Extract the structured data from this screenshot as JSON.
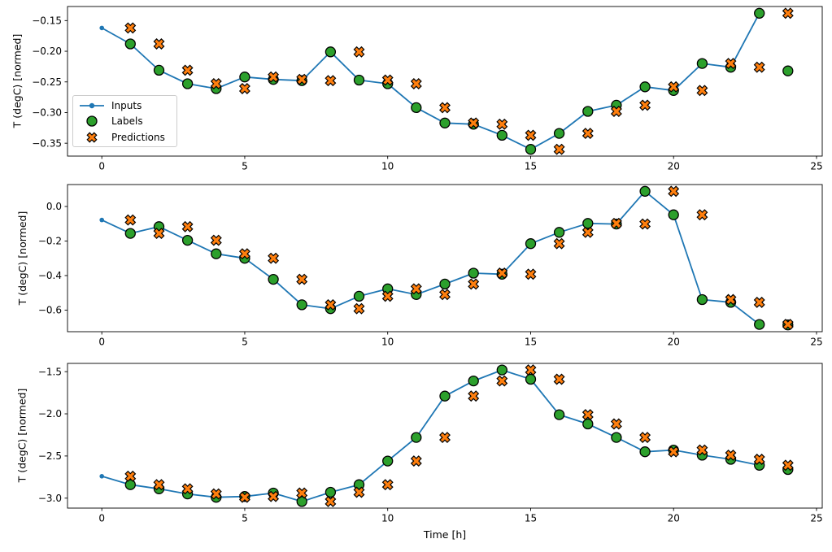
{
  "chart_data": [
    {
      "type": "line",
      "title": "",
      "xlabel": "",
      "ylabel": "T (degC) [normed]",
      "xlim": [
        -1.2,
        25.2
      ],
      "ylim": [
        -0.371,
        -0.127
      ],
      "xticks": [
        0,
        5,
        10,
        15,
        20,
        25
      ],
      "ytick_values": [
        -0.15,
        -0.2,
        -0.25,
        -0.3,
        -0.35
      ],
      "ytick_labels": [
        "−0.15",
        "−0.20",
        "−0.25",
        "−0.30",
        "−0.35"
      ],
      "grid": false,
      "legend_position": "center-left",
      "legend_labels": [
        "Inputs",
        "Labels",
        "Predictions"
      ],
      "series": [
        {
          "name": "Inputs",
          "type": "line",
          "marker": "dot",
          "color": "#1f77b4",
          "x": [
            0,
            1,
            2,
            3,
            4,
            5,
            6,
            7,
            8,
            9,
            10,
            11,
            12,
            13,
            14,
            15,
            16,
            17,
            18,
            19,
            20,
            21,
            22,
            23
          ],
          "y": [
            -0.162,
            -0.188,
            -0.231,
            -0.253,
            -0.261,
            -0.242,
            -0.246,
            -0.248,
            -0.201,
            -0.247,
            -0.253,
            -0.292,
            -0.317,
            -0.319,
            -0.337,
            -0.36,
            -0.334,
            -0.298,
            -0.288,
            -0.258,
            -0.264,
            -0.22,
            -0.226,
            -0.138
          ]
        },
        {
          "name": "Labels",
          "type": "scatter",
          "marker": "circle",
          "color": "#2ca02c",
          "x": [
            1,
            2,
            3,
            4,
            5,
            6,
            7,
            8,
            9,
            10,
            11,
            12,
            13,
            14,
            15,
            16,
            17,
            18,
            19,
            20,
            21,
            22,
            23,
            24
          ],
          "y": [
            -0.188,
            -0.231,
            -0.253,
            -0.261,
            -0.242,
            -0.246,
            -0.248,
            -0.201,
            -0.247,
            -0.253,
            -0.292,
            -0.317,
            -0.319,
            -0.337,
            -0.36,
            -0.334,
            -0.298,
            -0.288,
            -0.258,
            -0.264,
            -0.22,
            -0.226,
            -0.138,
            -0.232
          ]
        },
        {
          "name": "Predictions",
          "type": "scatter",
          "marker": "X",
          "color": "#ff7f0e",
          "x": [
            1,
            2,
            3,
            4,
            5,
            6,
            7,
            8,
            9,
            10,
            11,
            12,
            13,
            14,
            15,
            16,
            17,
            18,
            19,
            20,
            21,
            22,
            23,
            24
          ],
          "y": [
            -0.162,
            -0.188,
            -0.231,
            -0.253,
            -0.261,
            -0.242,
            -0.246,
            -0.248,
            -0.201,
            -0.247,
            -0.253,
            -0.292,
            -0.317,
            -0.319,
            -0.337,
            -0.36,
            -0.334,
            -0.298,
            -0.288,
            -0.258,
            -0.264,
            -0.22,
            -0.226,
            -0.138
          ]
        }
      ]
    },
    {
      "type": "line",
      "title": "",
      "xlabel": "",
      "ylabel": "T (degC) [normed]",
      "xlim": [
        -1.2,
        25.2
      ],
      "ylim": [
        -0.725,
        0.127
      ],
      "xticks": [
        0,
        5,
        10,
        15,
        20,
        25
      ],
      "ytick_values": [
        0.0,
        -0.2,
        -0.4,
        -0.6
      ],
      "ytick_labels": [
        "0.0",
        "−0.2",
        "−0.4",
        "−0.6"
      ],
      "grid": false,
      "series": [
        {
          "name": "Inputs",
          "type": "line",
          "marker": "dot",
          "color": "#1f77b4",
          "x": [
            0,
            1,
            2,
            3,
            4,
            5,
            6,
            7,
            8,
            9,
            10,
            11,
            12,
            13,
            14,
            15,
            16,
            17,
            18,
            19,
            20,
            21,
            22,
            23
          ],
          "y": [
            -0.078,
            -0.156,
            -0.117,
            -0.196,
            -0.274,
            -0.3,
            -0.422,
            -0.569,
            -0.592,
            -0.52,
            -0.477,
            -0.51,
            -0.449,
            -0.386,
            -0.392,
            -0.215,
            -0.15,
            -0.098,
            -0.102,
            0.088,
            -0.048,
            -0.539,
            -0.555,
            -0.683
          ]
        },
        {
          "name": "Labels",
          "type": "scatter",
          "marker": "circle",
          "color": "#2ca02c",
          "x": [
            1,
            2,
            3,
            4,
            5,
            6,
            7,
            8,
            9,
            10,
            11,
            12,
            13,
            14,
            15,
            16,
            17,
            18,
            19,
            20,
            21,
            22,
            23,
            24
          ],
          "y": [
            -0.156,
            -0.117,
            -0.196,
            -0.274,
            -0.3,
            -0.422,
            -0.569,
            -0.592,
            -0.52,
            -0.477,
            -0.51,
            -0.449,
            -0.386,
            -0.392,
            -0.215,
            -0.15,
            -0.098,
            -0.102,
            0.088,
            -0.048,
            -0.539,
            -0.555,
            -0.683,
            -0.686
          ]
        },
        {
          "name": "Predictions",
          "type": "scatter",
          "marker": "X",
          "color": "#ff7f0e",
          "x": [
            1,
            2,
            3,
            4,
            5,
            6,
            7,
            8,
            9,
            10,
            11,
            12,
            13,
            14,
            15,
            16,
            17,
            18,
            19,
            20,
            21,
            22,
            23,
            24
          ],
          "y": [
            -0.078,
            -0.156,
            -0.117,
            -0.196,
            -0.274,
            -0.3,
            -0.422,
            -0.569,
            -0.592,
            -0.52,
            -0.477,
            -0.51,
            -0.449,
            -0.386,
            -0.392,
            -0.215,
            -0.15,
            -0.098,
            -0.102,
            0.088,
            -0.048,
            -0.539,
            -0.555,
            -0.683
          ]
        }
      ]
    },
    {
      "type": "line",
      "title": "",
      "xlabel": "Time [h]",
      "ylabel": "T (degC) [normed]",
      "xlim": [
        -1.2,
        25.2
      ],
      "ylim": [
        -3.118,
        -1.402
      ],
      "xticks": [
        0,
        5,
        10,
        15,
        20,
        25
      ],
      "ytick_values": [
        -1.5,
        -2.0,
        -2.5,
        -3.0
      ],
      "ytick_labels": [
        "−1.5",
        "−2.0",
        "−2.5",
        "−3.0"
      ],
      "grid": false,
      "series": [
        {
          "name": "Inputs",
          "type": "line",
          "marker": "dot",
          "color": "#1f77b4",
          "x": [
            0,
            1,
            2,
            3,
            4,
            5,
            6,
            7,
            8,
            9,
            10,
            11,
            12,
            13,
            14,
            15,
            16,
            17,
            18,
            19,
            20,
            21,
            22,
            23
          ],
          "y": [
            -2.74,
            -2.84,
            -2.89,
            -2.95,
            -2.99,
            -2.98,
            -2.94,
            -3.04,
            -2.93,
            -2.84,
            -2.56,
            -2.28,
            -1.79,
            -1.61,
            -1.48,
            -1.59,
            -2.01,
            -2.12,
            -2.28,
            -2.45,
            -2.43,
            -2.49,
            -2.54,
            -2.61
          ]
        },
        {
          "name": "Labels",
          "type": "scatter",
          "marker": "circle",
          "color": "#2ca02c",
          "x": [
            1,
            2,
            3,
            4,
            5,
            6,
            7,
            8,
            9,
            10,
            11,
            12,
            13,
            14,
            15,
            16,
            17,
            18,
            19,
            20,
            21,
            22,
            23,
            24
          ],
          "y": [
            -2.84,
            -2.89,
            -2.95,
            -2.99,
            -2.98,
            -2.94,
            -3.04,
            -2.93,
            -2.84,
            -2.56,
            -2.28,
            -1.79,
            -1.61,
            -1.48,
            -1.59,
            -2.01,
            -2.12,
            -2.28,
            -2.45,
            -2.43,
            -2.49,
            -2.54,
            -2.61,
            -2.66
          ]
        },
        {
          "name": "Predictions",
          "type": "scatter",
          "marker": "X",
          "color": "#ff7f0e",
          "x": [
            1,
            2,
            3,
            4,
            5,
            6,
            7,
            8,
            9,
            10,
            11,
            12,
            13,
            14,
            15,
            16,
            17,
            18,
            19,
            20,
            21,
            22,
            23,
            24
          ],
          "y": [
            -2.74,
            -2.84,
            -2.89,
            -2.95,
            -2.99,
            -2.98,
            -2.94,
            -3.04,
            -2.93,
            -2.84,
            -2.56,
            -2.28,
            -1.79,
            -1.61,
            -1.48,
            -1.59,
            -2.01,
            -2.12,
            -2.28,
            -2.45,
            -2.43,
            -2.49,
            -2.54,
            -2.61
          ]
        }
      ]
    }
  ]
}
